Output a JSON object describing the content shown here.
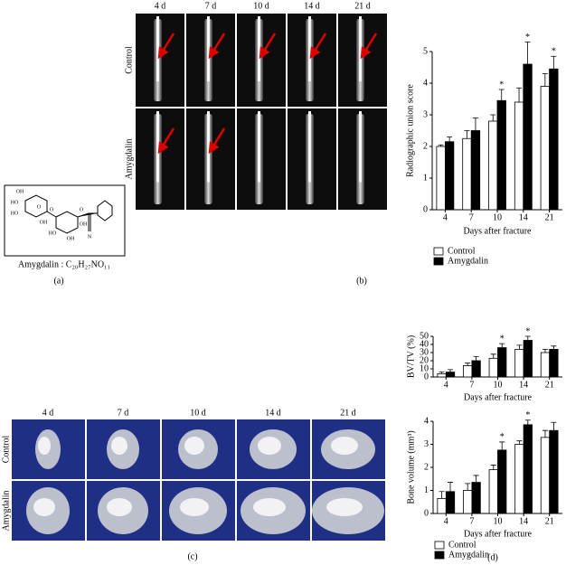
{
  "panels": {
    "a": {
      "label": "(a)",
      "structure_labels": [
        "OH",
        "HO",
        "HO",
        "O",
        "OH",
        "O",
        "HO",
        "OH",
        "OH",
        "O",
        "N"
      ],
      "caption": "Amygdalin : C₂₀H₂₇NO₁₁"
    },
    "b": {
      "label": "(b)",
      "days": [
        "4 d",
        "7 d",
        "10 d",
        "14 d",
        "21 d"
      ],
      "rows": [
        "Control",
        "Amygdalin"
      ]
    },
    "c": {
      "label": "(c)",
      "days": [
        "4 d",
        "7 d",
        "10 d",
        "14 d",
        "21 d"
      ],
      "rows": [
        "Control",
        "Amygdalin"
      ]
    },
    "d": {
      "label": "(d)"
    }
  },
  "chart_data": [
    {
      "type": "bar",
      "ylabel": "Radiographic union score",
      "xlabel": "Days after fracture",
      "categories": [
        "4",
        "7",
        "10",
        "14",
        "21"
      ],
      "ylim": [
        0,
        5
      ],
      "yticks": [
        0,
        1,
        2,
        3,
        4,
        5
      ],
      "significance_mark": "*",
      "legend": "below",
      "series": [
        {
          "name": "Control",
          "color": "#ffffff",
          "values": [
            2.0,
            2.25,
            2.8,
            3.4,
            3.9
          ],
          "errors": [
            0.05,
            0.25,
            0.2,
            0.45,
            0.4
          ],
          "significant": [
            false,
            false,
            false,
            false,
            false
          ]
        },
        {
          "name": "Amygdalin",
          "color": "#000000",
          "values": [
            2.15,
            2.5,
            3.45,
            4.6,
            4.45
          ],
          "errors": [
            0.15,
            0.4,
            0.35,
            0.7,
            0.4
          ],
          "significant": [
            false,
            false,
            true,
            true,
            true
          ]
        }
      ]
    },
    {
      "type": "bar",
      "ylabel": "BV/TV (%)",
      "xlabel": "Days after fracture",
      "categories": [
        "4",
        "7",
        "10",
        "14",
        "21"
      ],
      "ylim": [
        0,
        50
      ],
      "yticks": [
        0,
        10,
        20,
        30,
        40,
        50
      ],
      "significance_mark": "*",
      "series": [
        {
          "color": "#ffffff",
          "values": [
            4,
            14,
            23,
            34,
            30
          ],
          "errors": [
            2,
            3,
            5,
            5,
            4
          ],
          "significant": [
            false,
            false,
            false,
            false,
            false
          ]
        },
        {
          "color": "#000000",
          "values": [
            6,
            20,
            36,
            45,
            34
          ],
          "errors": [
            3,
            5,
            5,
            5,
            4
          ],
          "significant": [
            false,
            false,
            true,
            true,
            false
          ]
        }
      ]
    },
    {
      "type": "bar",
      "ylabel": "Bone volume (mm³)",
      "xlabel": "Days after fracture",
      "categories": [
        "4",
        "7",
        "10",
        "14",
        "21"
      ],
      "ylim": [
        0,
        4
      ],
      "yticks": [
        0,
        1,
        2,
        3,
        4
      ],
      "significance_mark": "*",
      "legend": "below",
      "series": [
        {
          "name": "Control",
          "color": "#ffffff",
          "values": [
            0.65,
            1.0,
            1.9,
            3.0,
            3.3
          ],
          "errors": [
            0.3,
            0.3,
            0.2,
            0.15,
            0.3
          ],
          "significant": [
            false,
            false,
            false,
            false,
            false
          ]
        },
        {
          "name": "Amygdalin",
          "color": "#000000",
          "values": [
            0.95,
            1.35,
            2.75,
            3.85,
            3.6
          ],
          "errors": [
            0.4,
            0.3,
            0.35,
            0.2,
            0.35
          ],
          "significant": [
            false,
            false,
            true,
            true,
            false
          ]
        }
      ]
    }
  ]
}
